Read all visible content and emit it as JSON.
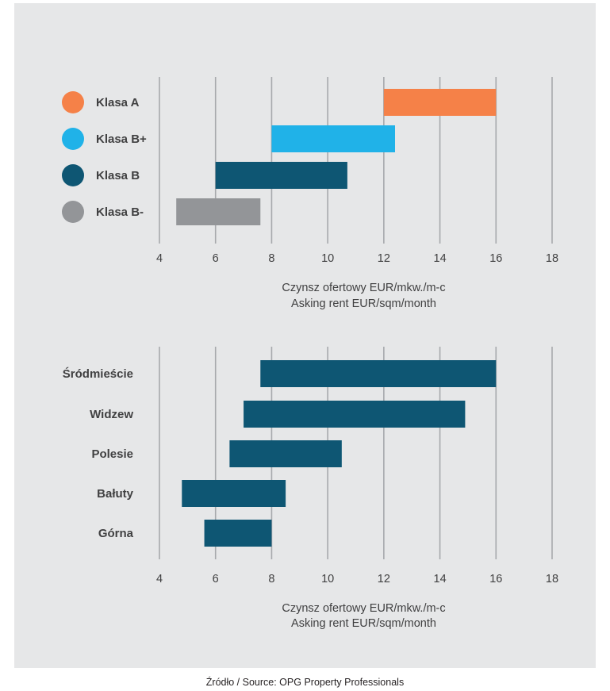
{
  "chart_data": [
    {
      "type": "bar",
      "orientation": "horizontal-range",
      "categories": [
        "Klasa A",
        "Klasa B+",
        "Klasa B",
        "Klasa B-"
      ],
      "ranges": [
        [
          12,
          16
        ],
        [
          8,
          12.4
        ],
        [
          6,
          10.7
        ],
        [
          4.6,
          7.6
        ]
      ],
      "colors": [
        "#f58148",
        "#20b2e8",
        "#0e5673",
        "#939598"
      ],
      "legend_markers": true,
      "xlim": [
        4,
        18
      ],
      "xticks": [
        4,
        6,
        8,
        10,
        12,
        14,
        16,
        18
      ],
      "xlabel": [
        "Czynsz ofertowy EUR/mkw./m-c",
        "Asking rent EUR/sqm/month"
      ],
      "grid": true
    },
    {
      "type": "bar",
      "orientation": "horizontal-range",
      "categories": [
        "Śródmieście",
        "Widzew",
        "Polesie",
        "Bałuty",
        "Górna"
      ],
      "ranges": [
        [
          7.6,
          16
        ],
        [
          7,
          14.9
        ],
        [
          6.5,
          10.5
        ],
        [
          4.8,
          8.5
        ],
        [
          5.6,
          8
        ]
      ],
      "colors": [
        "#0e5673",
        "#0e5673",
        "#0e5673",
        "#0e5673",
        "#0e5673"
      ],
      "legend_markers": false,
      "xlim": [
        4,
        18
      ],
      "xticks": [
        4,
        6,
        8,
        10,
        12,
        14,
        16,
        18
      ],
      "xlabel": [
        "Czynsz ofertowy EUR/mkw./m-c",
        "Asking rent EUR/sqm/month"
      ],
      "grid": true
    }
  ],
  "source": "Źródło / Source: OPG Property Professionals"
}
